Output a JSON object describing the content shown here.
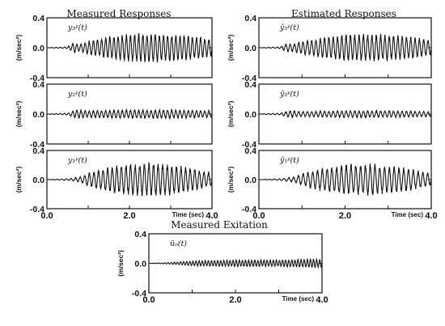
{
  "figure": {
    "group_titles": {
      "measured": "Measured Responses",
      "estimated": "Estimated Responses",
      "excitation": "Measured Exitation"
    }
  },
  "chart_data": [
    {
      "id": "meas_1",
      "type": "line",
      "panel_label": "y₃ʸ(t)",
      "ylabel": "(m/sec²)",
      "xlim": [
        0,
        4
      ],
      "ylim": [
        -0.4,
        0.4
      ],
      "yticks": [
        "0.4",
        "0.0",
        "-0.4"
      ],
      "xticks": [],
      "xlabel": "",
      "amplitude_envelope_m_s2": [
        [
          0.0,
          0.0
        ],
        [
          0.5,
          0.01
        ],
        [
          0.65,
          0.06
        ],
        [
          0.8,
          0.04
        ],
        [
          1.0,
          0.08
        ],
        [
          1.5,
          0.13
        ],
        [
          2.0,
          0.16
        ],
        [
          2.5,
          0.17
        ],
        [
          3.0,
          0.16
        ],
        [
          3.5,
          0.14
        ],
        [
          4.0,
          0.1
        ]
      ],
      "cycles_per_sec": 10
    },
    {
      "id": "est_1",
      "type": "line",
      "panel_label": "ŷ₃ʸ(t)",
      "ylabel": "(m/sec²)",
      "xlim": [
        0,
        4
      ],
      "ylim": [
        -0.4,
        0.4
      ],
      "yticks": [
        "0.4",
        "0.0",
        "-0.4"
      ],
      "xticks": [],
      "xlabel": "",
      "amplitude_envelope_m_s2": [
        [
          0.0,
          0.0
        ],
        [
          0.5,
          0.01
        ],
        [
          0.65,
          0.05
        ],
        [
          0.8,
          0.04
        ],
        [
          1.0,
          0.08
        ],
        [
          1.5,
          0.12
        ],
        [
          2.0,
          0.15
        ],
        [
          2.5,
          0.16
        ],
        [
          3.0,
          0.15
        ],
        [
          3.5,
          0.13
        ],
        [
          4.0,
          0.09
        ]
      ],
      "cycles_per_sec": 10
    },
    {
      "id": "meas_2",
      "type": "line",
      "panel_label": "y₂ʸ(t)",
      "ylabel": "(m/sec²)",
      "xlim": [
        0,
        4
      ],
      "ylim": [
        -0.4,
        0.4
      ],
      "yticks": [
        "0.4",
        "0.0",
        "-0.4"
      ],
      "xticks": [],
      "xlabel": "",
      "amplitude_envelope_m_s2": [
        [
          0.0,
          0.0
        ],
        [
          0.5,
          0.01
        ],
        [
          0.7,
          0.05
        ],
        [
          1.0,
          0.04
        ],
        [
          2.0,
          0.05
        ],
        [
          3.0,
          0.05
        ],
        [
          4.0,
          0.04
        ]
      ],
      "cycles_per_sec": 10
    },
    {
      "id": "est_2",
      "type": "line",
      "panel_label": "ŷ₂ʸ(t)",
      "ylabel": "(m/sec²)",
      "xlim": [
        0,
        4
      ],
      "ylim": [
        -0.4,
        0.4
      ],
      "yticks": [
        "0.4",
        "0.0",
        "-0.4"
      ],
      "xticks": [],
      "xlabel": "",
      "amplitude_envelope_m_s2": [
        [
          0.0,
          0.0
        ],
        [
          0.5,
          0.01
        ],
        [
          0.7,
          0.04
        ],
        [
          1.0,
          0.03
        ],
        [
          2.0,
          0.04
        ],
        [
          3.0,
          0.04
        ],
        [
          4.0,
          0.03
        ]
      ],
      "cycles_per_sec": 10
    },
    {
      "id": "meas_3",
      "type": "line",
      "panel_label": "y₁ʸ(t)",
      "ylabel": "(m/sec²)",
      "xlim": [
        0,
        4
      ],
      "ylim": [
        -0.4,
        0.4
      ],
      "yticks": [
        "0.4",
        "0.0",
        "-0.4"
      ],
      "xticks": [
        "0.0",
        "2.0",
        "4.0"
      ],
      "xlabel": "Time (sec)",
      "amplitude_envelope_m_s2": [
        [
          0.0,
          0.0
        ],
        [
          0.5,
          0.01
        ],
        [
          0.8,
          0.03
        ],
        [
          1.0,
          0.08
        ],
        [
          1.5,
          0.15
        ],
        [
          2.0,
          0.19
        ],
        [
          2.5,
          0.2
        ],
        [
          3.0,
          0.18
        ],
        [
          3.5,
          0.14
        ],
        [
          4.0,
          0.08
        ]
      ],
      "cycles_per_sec": 9
    },
    {
      "id": "est_3",
      "type": "line",
      "panel_label": "ŷ₁ʸ(t)",
      "ylabel": "(m/sec²)",
      "xlim": [
        0,
        4
      ],
      "ylim": [
        -0.4,
        0.4
      ],
      "yticks": [
        "0.4",
        "0.0",
        "-0.4"
      ],
      "xticks": [
        "0.0",
        "2.0",
        "4.0"
      ],
      "xlabel": "Time (sec)",
      "amplitude_envelope_m_s2": [
        [
          0.0,
          0.0
        ],
        [
          0.5,
          0.01
        ],
        [
          0.8,
          0.03
        ],
        [
          1.0,
          0.07
        ],
        [
          1.5,
          0.14
        ],
        [
          2.0,
          0.18
        ],
        [
          2.5,
          0.19
        ],
        [
          3.0,
          0.17
        ],
        [
          3.5,
          0.13
        ],
        [
          4.0,
          0.07
        ]
      ],
      "cycles_per_sec": 9
    },
    {
      "id": "excitation",
      "type": "line",
      "panel_label": "üₒ(t)",
      "ylabel": "(m/sec²)",
      "xlim": [
        0,
        4
      ],
      "ylim": [
        -0.4,
        0.4
      ],
      "yticks": [
        "0.4",
        "0.0",
        "-0.4"
      ],
      "xticks": [
        "0.0",
        "2.0",
        "4.0"
      ],
      "xlabel": "Time (sec)",
      "amplitude_envelope_m_s2": [
        [
          0.0,
          0.0
        ],
        [
          0.5,
          0.01
        ],
        [
          1.0,
          0.03
        ],
        [
          2.0,
          0.04
        ],
        [
          3.0,
          0.04
        ],
        [
          3.8,
          0.05
        ],
        [
          4.0,
          0.05
        ]
      ],
      "cycles_per_sec": 14
    }
  ]
}
